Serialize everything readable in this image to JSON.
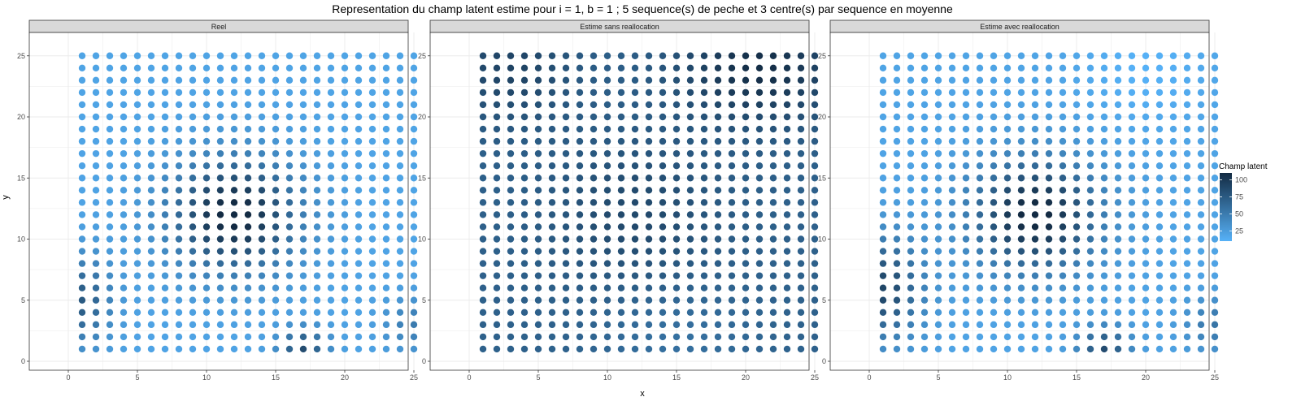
{
  "chart_data": {
    "type": "scatter",
    "title": "Representation du champ latent estime pour i = 1, b = 1 ; 5 sequence(s) de peche et 3 centre(s) par sequence en moyenne",
    "xlabel": "x",
    "ylabel": "y",
    "xlim": [
      0,
      25
    ],
    "ylim": [
      0,
      25
    ],
    "xticks": [
      0,
      5,
      10,
      15,
      20,
      25
    ],
    "yticks": [
      0,
      5,
      10,
      15,
      20,
      25
    ],
    "grid_n": 25,
    "grid": true,
    "panels": [
      {
        "name": "Reel",
        "field": "reel"
      },
      {
        "name": "Estime sans reallocation",
        "field": "sans"
      },
      {
        "name": "Estime avec reallocation",
        "field": "avec"
      }
    ],
    "fields": {
      "reel": {
        "base": 20,
        "hotspots": [
          {
            "x": 12,
            "y": 12,
            "amp": 95,
            "sx": 3.2,
            "sy": 3.2
          },
          {
            "x": 1,
            "y": 5,
            "amp": 55,
            "sx": 1.5,
            "sy": 2.5
          },
          {
            "x": 17,
            "y": 1,
            "amp": 65,
            "sx": 1.2,
            "sy": 1.2
          },
          {
            "x": 25,
            "y": 3,
            "amp": 30,
            "sx": 1.5,
            "sy": 1.5
          }
        ]
      },
      "sans": {
        "base": 70,
        "hotspots": [
          {
            "x": 21,
            "y": 24,
            "amp": 38,
            "sx": 4,
            "sy": 3
          },
          {
            "x": 3,
            "y": 24,
            "amp": 22,
            "sx": 3,
            "sy": 3
          },
          {
            "x": 12,
            "y": 12,
            "amp": 18,
            "sx": 4,
            "sy": 4
          },
          {
            "x": 15,
            "y": 2,
            "amp": -12,
            "sx": 4,
            "sy": 3
          }
        ]
      },
      "avec": {
        "base": 20,
        "hotspots": [
          {
            "x": 12,
            "y": 12,
            "amp": 95,
            "sx": 3.2,
            "sy": 3.2
          },
          {
            "x": 1,
            "y": 6,
            "amp": 70,
            "sx": 2,
            "sy": 3
          },
          {
            "x": 17,
            "y": 1,
            "amp": 65,
            "sx": 1.3,
            "sy": 1.3
          },
          {
            "x": 25,
            "y": 3,
            "amp": 35,
            "sx": 1.5,
            "sy": 1.5
          },
          {
            "x": 20,
            "y": 24,
            "amp": -10,
            "sx": 3,
            "sy": 3
          }
        ]
      }
    },
    "legend": {
      "title": "Champ latent",
      "placement": "right",
      "ticks": [
        25,
        50,
        75,
        100
      ],
      "range": [
        10,
        110
      ]
    },
    "colors": {
      "low": "#56B1F7",
      "high": "#132B43",
      "panel_strip": "#d9d9d9",
      "grid": "#ebebeb"
    }
  }
}
